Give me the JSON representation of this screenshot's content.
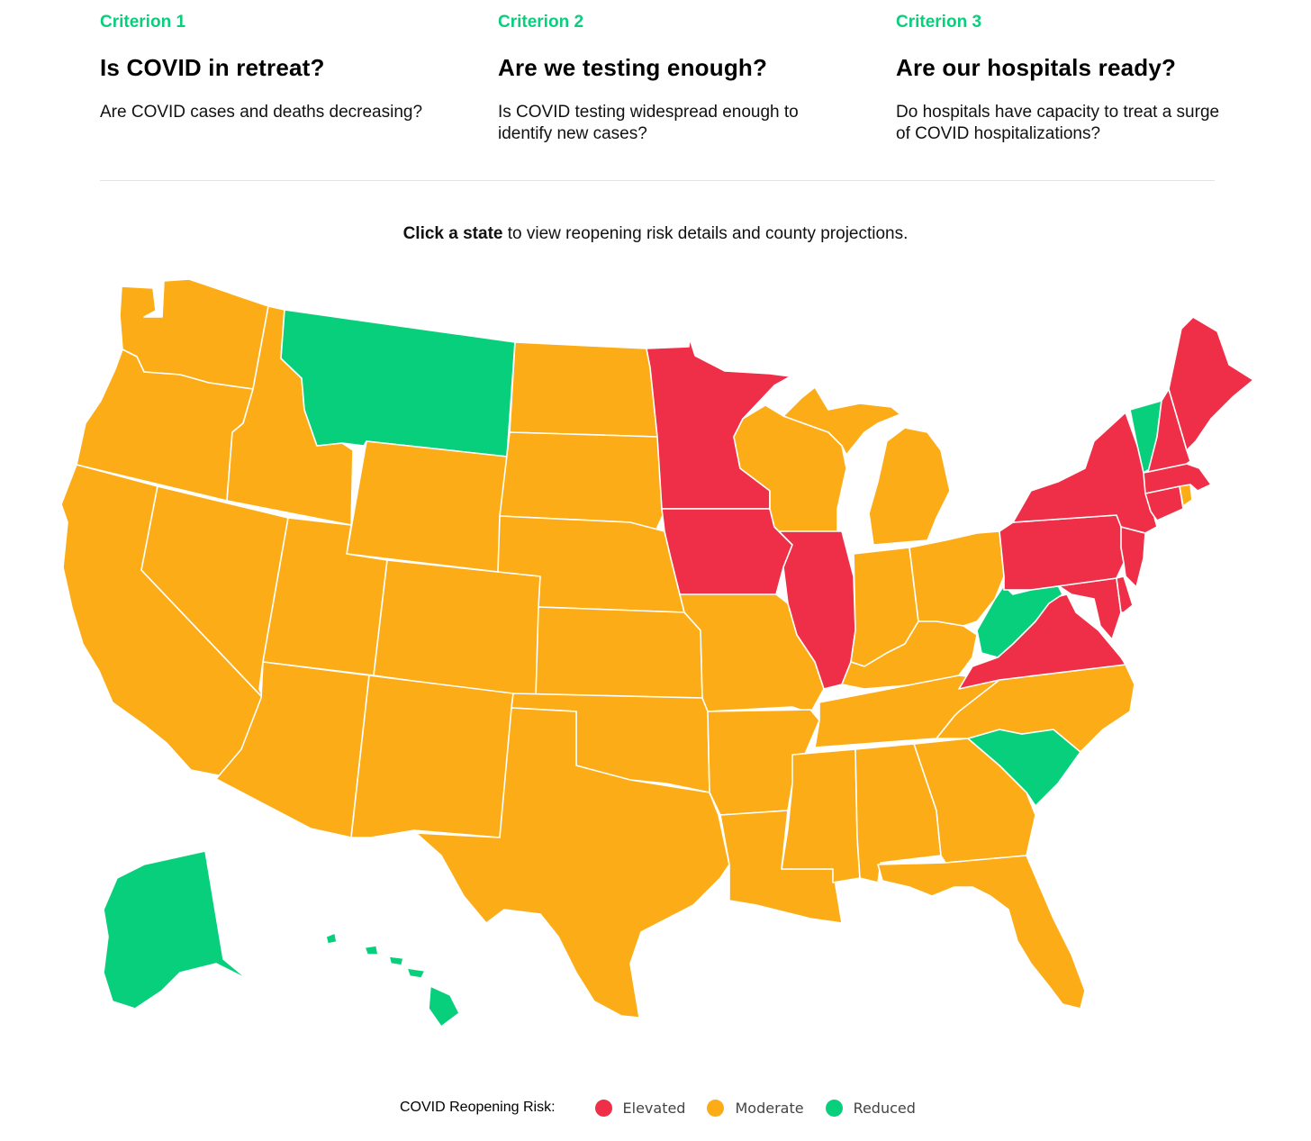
{
  "criteria": [
    {
      "label": "Criterion 1",
      "title": "Is COVID in retreat?",
      "description": "Are COVID cases and deaths decreasing?"
    },
    {
      "label": "Criterion 2",
      "title": "Are we testing enough?",
      "description": "Is COVID testing widespread enough to identify new cases?"
    },
    {
      "label": "Criterion 3",
      "title": "Are our hospitals ready?",
      "description": "Do hospitals have capacity to treat a surge of COVID hospitalizations?"
    }
  ],
  "instruction": {
    "bold": "Click a state",
    "rest": " to view reopening risk details and county projections."
  },
  "legend": {
    "title": "COVID Reopening Risk:",
    "levels": [
      {
        "key": "elevated",
        "label": "Elevated",
        "color": "#ef2e47"
      },
      {
        "key": "moderate",
        "label": "Moderate",
        "color": "#fbac16"
      },
      {
        "key": "reduced",
        "label": "Reduced",
        "color": "#08cf7c"
      }
    ]
  },
  "states": {
    "WA": "moderate",
    "OR": "moderate",
    "CA": "moderate",
    "ID": "moderate",
    "NV": "moderate",
    "MT": "reduced",
    "WY": "moderate",
    "UT": "moderate",
    "AZ": "moderate",
    "CO": "moderate",
    "NM": "moderate",
    "ND": "moderate",
    "SD": "moderate",
    "NE": "moderate",
    "KS": "moderate",
    "OK": "moderate",
    "TX": "moderate",
    "MN": "elevated",
    "IA": "elevated",
    "MO": "moderate",
    "AR": "moderate",
    "LA": "moderate",
    "WI": "moderate",
    "IL": "elevated",
    "MI": "moderate",
    "IN": "moderate",
    "OH": "moderate",
    "KY": "moderate",
    "TN": "moderate",
    "MS": "moderate",
    "AL": "moderate",
    "GA": "moderate",
    "FL": "moderate",
    "SC": "reduced",
    "NC": "moderate",
    "VA": "elevated",
    "WV": "reduced",
    "MD": "elevated",
    "DE": "elevated",
    "DC": "elevated",
    "PA": "elevated",
    "NJ": "elevated",
    "NY": "elevated",
    "CT": "elevated",
    "RI": "moderate",
    "MA": "elevated",
    "VT": "reduced",
    "NH": "elevated",
    "ME": "elevated",
    "AK": "reduced",
    "HI": "reduced"
  }
}
